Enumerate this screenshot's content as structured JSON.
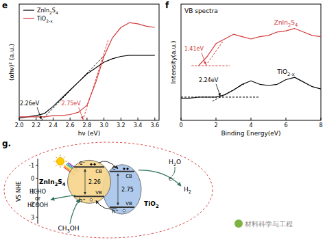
{
  "chart_data": [
    {
      "label": "e",
      "type": "line",
      "x_label": "hν (eV)",
      "y_label": "(αhν)² (a.u.)",
      "xlim": [
        2.0,
        3.65
      ],
      "xticks": [
        {
          "value": 2.0,
          "label": "2.0"
        },
        {
          "value": 2.2,
          "label": "2.2"
        },
        {
          "value": 2.4,
          "label": "2.4"
        },
        {
          "value": 2.6,
          "label": "2.6"
        },
        {
          "value": 2.8,
          "label": "2.8"
        },
        {
          "value": 3.0,
          "label": "3.0"
        },
        {
          "value": 3.2,
          "label": "3.2"
        },
        {
          "value": 3.4,
          "label": "3.4"
        },
        {
          "value": 3.6,
          "label": "3.6"
        }
      ],
      "ylim": [
        0,
        1
      ],
      "tick_labels": "x",
      "legend": "top-left",
      "x": [
        2.0,
        2.1,
        2.2,
        2.3,
        2.4,
        2.5,
        2.6,
        2.7,
        2.8,
        2.9,
        3.0,
        3.1,
        3.2,
        3.3,
        3.4,
        3.5,
        3.6
      ],
      "series": [
        {
          "name": "ZnIn2S4",
          "color": "#000000",
          "values": [
            0.02,
            0.03,
            0.04,
            0.06,
            0.12,
            0.19,
            0.26,
            0.33,
            0.4,
            0.45,
            0.5,
            0.53,
            0.55,
            0.56,
            0.56,
            0.56,
            0.56
          ]
        },
        {
          "name": "TiO2-x",
          "color": "#d43a3a",
          "values": [
            0.03,
            0.03,
            0.03,
            0.03,
            0.04,
            0.04,
            0.05,
            0.07,
            0.13,
            0.32,
            0.55,
            0.71,
            0.8,
            0.84,
            0.83,
            0.81,
            0.8
          ]
        }
      ],
      "tangents": [
        {
          "color": "#000000",
          "x": [
            2.26,
            3.0
          ],
          "values": [
            0,
            0.555
          ]
        },
        {
          "color": "#e8443a",
          "x": [
            2.75,
            3.05
          ],
          "values": [
            0,
            0.69
          ]
        }
      ],
      "annotations": [
        {
          "text": "2.26eV",
          "x": 2.26,
          "y": 0,
          "color": "#000000"
        },
        {
          "text": "2.75eV",
          "x": 2.75,
          "y": 0,
          "color": "#d43a3a"
        }
      ]
    },
    {
      "label": "f",
      "type": "line",
      "title": "VB spectra",
      "x_label": "Binding Energy(eV)",
      "y_label": "Intensity(a.u.)",
      "xlim": [
        0,
        8
      ],
      "xticks": [
        0,
        2,
        4,
        6,
        8
      ],
      "ylim": [
        0,
        1
      ],
      "tick_labels": "x",
      "x": [
        0,
        0.5,
        1.0,
        1.5,
        2.0,
        2.5,
        3.0,
        3.5,
        4.0,
        4.5,
        5.0,
        5.5,
        6.0,
        6.5,
        7.0,
        7.5,
        8.0
      ],
      "series": [
        {
          "name": "ZnIn2S4",
          "color": "#d43a3a",
          "values": [
            null,
            null,
            0.47,
            0.55,
            0.66,
            0.7,
            0.74,
            0.72,
            0.7,
            0.72,
            0.73,
            0.76,
            0.77,
            0.79,
            0.76,
            0.73,
            0.72
          ]
        },
        {
          "name": "TiO2-x",
          "color": "#000000",
          "values": [
            0.19,
            0.19,
            0.2,
            0.2,
            0.2,
            0.22,
            0.26,
            0.31,
            0.34,
            0.31,
            0.3,
            0.31,
            0.35,
            0.37,
            0.33,
            0.29,
            0.27
          ]
        }
      ],
      "tangents": [
        {
          "color": "#d43a3a",
          "x": [
            0.6,
            2.8
          ],
          "values": [
            0.47,
            0.47
          ]
        },
        {
          "color": "#d43a3a",
          "x": [
            1.41,
            2.4
          ],
          "values": [
            0.47,
            0.68
          ]
        },
        {
          "color": "#000000",
          "x": [
            0,
            4.5
          ],
          "values": [
            0.2,
            0.2
          ]
        },
        {
          "color": "#000000",
          "x": [
            1.8,
            3.7
          ],
          "values": [
            0.164,
            0.32
          ]
        }
      ],
      "annotations": [
        {
          "text": "1.41eV",
          "x": 1.41,
          "y": 0.47,
          "color": "#d43a3a"
        },
        {
          "text": "2.24eV",
          "x": 2.24,
          "y": 0.2,
          "color": "#000000"
        }
      ]
    }
  ],
  "diagram": {
    "label": "g.",
    "axis_label": "VS NHE",
    "ylim": [
      -1.5,
      3.5
    ],
    "yticks": [
      -1,
      0,
      1,
      2,
      3
    ],
    "semiconductors": [
      {
        "name": "ZnIn2S4",
        "cb": -0.85,
        "vb": 1.41,
        "gap": "2.26",
        "color": "#f6d68c"
      },
      {
        "name": "TiO2",
        "cb": -0.51,
        "vb": 2.24,
        "gap": "2.75",
        "color": "#a8c6ea"
      }
    ],
    "cb_label": "CB",
    "vb_label": "VB",
    "electron": "e⁻",
    "hole": "h⁺",
    "reduction": {
      "reactant": "H2O",
      "product": "H2"
    },
    "oxidation": {
      "reactant": "CH3OH",
      "products": [
        "HCHO",
        "or",
        "HCOOH"
      ]
    }
  },
  "watermark": "材料科学与工程"
}
